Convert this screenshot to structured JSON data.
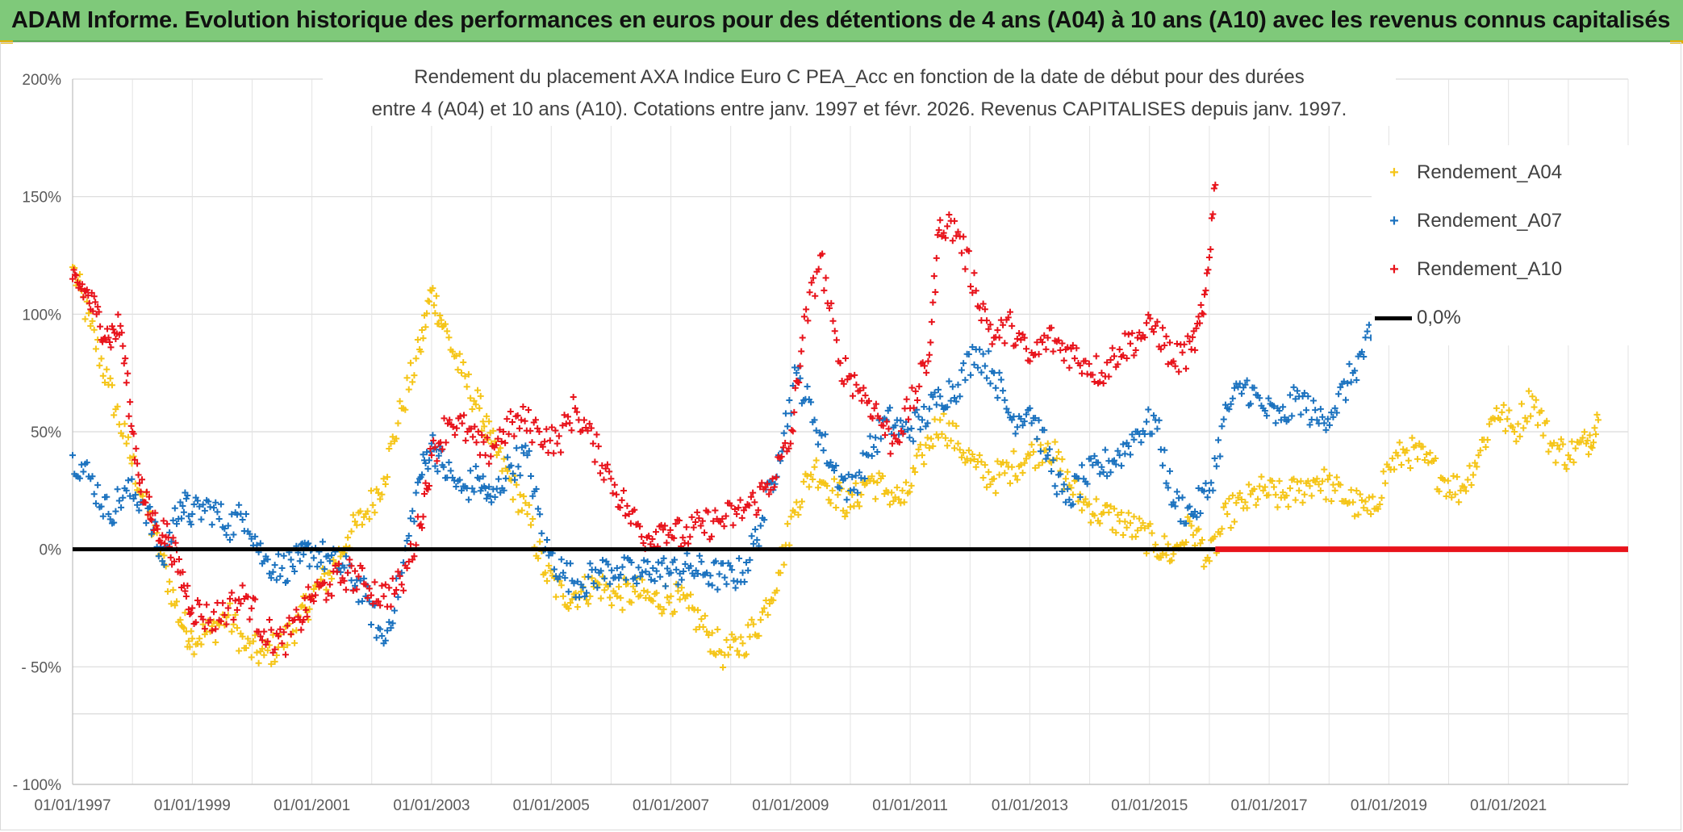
{
  "banner": {
    "title": "ADAM Informe. Evolution historique des performances en euros pour des détentions de 4 ans (A04) à 10 ans (A10) avec les revenus connus capitalisés"
  },
  "chart_data": {
    "type": "scatter",
    "title_line1": "Rendement du placement AXA Indice Euro C PEA_Acc en fonction de la date de début pour des durées",
    "title_line2": "entre 4 (A04) et 10 ans (A10). Cotations entre janv. 1997 et févr. 2026. Revenus CAPITALISES depuis janv. 1997.",
    "xlim": [
      1997.0,
      2023.0
    ],
    "ylim": [
      -100,
      200
    ],
    "y_ticks": [
      {
        "value": 200,
        "label": "200%"
      },
      {
        "value": 150,
        "label": "150%"
      },
      {
        "value": 100,
        "label": "100%"
      },
      {
        "value": 50,
        "label": "50%"
      },
      {
        "value": 0,
        "label": "0%"
      },
      {
        "value": -50,
        "label": "- 50%"
      },
      {
        "value": -100,
        "label": "- 100%"
      }
    ],
    "x_ticks": [
      {
        "value": 1997,
        "label": "01/01/1997"
      },
      {
        "value": 1999,
        "label": "01/01/1999"
      },
      {
        "value": 2001,
        "label": "01/01/2001"
      },
      {
        "value": 2003,
        "label": "01/01/2003"
      },
      {
        "value": 2005,
        "label": "01/01/2005"
      },
      {
        "value": 2007,
        "label": "01/01/2007"
      },
      {
        "value": 2009,
        "label": "01/01/2009"
      },
      {
        "value": 2011,
        "label": "01/01/2011"
      },
      {
        "value": 2013,
        "label": "01/01/2013"
      },
      {
        "value": 2015,
        "label": "01/01/2015"
      },
      {
        "value": 2017,
        "label": "01/01/2017"
      },
      {
        "value": 2019,
        "label": "01/01/2019"
      },
      {
        "value": 2021,
        "label": "01/01/2021"
      }
    ],
    "series": [
      {
        "name": "Rendement_A04",
        "color": "#f5c518",
        "x": [
          1997.0,
          1997.3,
          1997.6,
          1997.9,
          1998.2,
          1998.5,
          1998.8,
          1999.0,
          1999.3,
          1999.6,
          1999.9,
          2000.2,
          2000.5,
          2000.8,
          2001.0,
          2001.3,
          2001.6,
          2001.9,
          2002.2,
          2002.5,
          2002.8,
          2003.0,
          2003.2,
          2003.5,
          2003.8,
          2004.0,
          2004.3,
          2004.6,
          2004.9,
          2005.2,
          2005.5,
          2005.8,
          2006.1,
          2006.4,
          2006.7,
          2007.0,
          2007.3,
          2007.6,
          2007.9,
          2008.2,
          2008.5,
          2008.8,
          2009.1,
          2009.4,
          2009.7,
          2010.0,
          2010.3,
          2010.6,
          2010.9,
          2011.2,
          2011.5,
          2011.8,
          2012.1,
          2012.4,
          2012.7,
          2013.0,
          2013.3,
          2013.6,
          2013.9,
          2014.2,
          2014.5,
          2014.8,
          2015.1,
          2015.4,
          2015.7,
          2016.0,
          2016.3,
          2016.6,
          2016.9,
          2017.2,
          2017.5,
          2017.8,
          2018.1,
          2018.4,
          2018.7,
          2019.0,
          2019.3,
          2019.6,
          2019.9,
          2020.2,
          2020.5,
          2020.8,
          2021.1,
          2021.4,
          2021.7,
          2022.0,
          2022.3,
          2022.5
        ],
        "y": [
          120,
          95,
          70,
          45,
          20,
          -5,
          -30,
          -38,
          -35,
          -28,
          -42,
          -45,
          -40,
          -30,
          -20,
          -10,
          5,
          15,
          30,
          60,
          85,
          110,
          95,
          75,
          60,
          45,
          30,
          15,
          -10,
          -20,
          -18,
          -15,
          -20,
          -18,
          -22,
          -20,
          -25,
          -35,
          -45,
          -40,
          -30,
          -10,
          20,
          35,
          25,
          18,
          30,
          25,
          20,
          40,
          55,
          45,
          35,
          30,
          35,
          40,
          45,
          30,
          20,
          15,
          12,
          8,
          2,
          -2,
          10,
          -5,
          15,
          20,
          25,
          22,
          25,
          30,
          25,
          20,
          15,
          35,
          42,
          38,
          30,
          25,
          40,
          60,
          50,
          65,
          45,
          40,
          45,
          55
        ]
      },
      {
        "name": "Rendement_A07",
        "color": "#1b72bf",
        "x": [
          1997.0,
          1997.3,
          1997.6,
          1997.9,
          1998.2,
          1998.5,
          1998.8,
          1999.0,
          1999.3,
          1999.6,
          1999.9,
          2000.2,
          2000.5,
          2000.8,
          2001.0,
          2001.3,
          2001.6,
          2001.9,
          2002.2,
          2002.5,
          2002.8,
          2003.0,
          2003.2,
          2003.5,
          2003.8,
          2004.0,
          2004.3,
          2004.6,
          2004.9,
          2005.2,
          2005.5,
          2005.8,
          2006.1,
          2006.4,
          2006.7,
          2007.0,
          2007.3,
          2007.6,
          2007.9,
          2008.2,
          2008.5,
          2008.8,
          2009.1,
          2009.4,
          2009.7,
          2010.0,
          2010.3,
          2010.6,
          2010.9,
          2011.2,
          2011.5,
          2011.8,
          2012.1,
          2012.4,
          2012.7,
          2013.0,
          2013.3,
          2013.6,
          2013.9,
          2014.2,
          2014.5,
          2014.8,
          2015.1,
          2015.4,
          2015.7,
          2016.0,
          2016.3,
          2016.6,
          2016.9,
          2017.2,
          2017.5,
          2017.8,
          2018.1,
          2018.4,
          2018.7
        ],
        "y": [
          40,
          30,
          15,
          25,
          20,
          -5,
          20,
          15,
          18,
          10,
          15,
          -5,
          -8,
          -5,
          0,
          -5,
          -10,
          -20,
          -40,
          -10,
          30,
          45,
          35,
          25,
          30,
          20,
          35,
          40,
          0,
          -10,
          -15,
          -10,
          -8,
          -12,
          -8,
          -10,
          -8,
          -10,
          -12,
          -10,
          10,
          40,
          75,
          55,
          35,
          25,
          40,
          55,
          50,
          55,
          65,
          70,
          85,
          75,
          55,
          60,
          40,
          20,
          30,
          35,
          40,
          50,
          55,
          20,
          15,
          25,
          60,
          70,
          60,
          55,
          65,
          55,
          60,
          75,
          90
        ]
      },
      {
        "name": "Rendement_A10",
        "color": "#e8131b",
        "x": [
          1997.0,
          1997.2,
          1997.4,
          1997.6,
          1997.8,
          1998.0,
          1998.2,
          1998.4,
          1998.6,
          1998.8,
          1999.0,
          1999.3,
          1999.6,
          1999.9,
          2000.2,
          2000.5,
          2000.8,
          2001.0,
          2001.3,
          2001.6,
          2001.9,
          2002.2,
          2002.5,
          2002.8,
          2003.0,
          2003.3,
          2003.6,
          2003.9,
          2004.2,
          2004.5,
          2004.8,
          2005.1,
          2005.4,
          2005.7,
          2006.0,
          2006.3,
          2006.6,
          2006.9,
          2007.2,
          2007.5,
          2007.8,
          2008.1,
          2008.4,
          2008.7,
          2009.0,
          2009.2,
          2009.5,
          2009.8,
          2010.1,
          2010.4,
          2010.7,
          2011.0,
          2011.3,
          2011.5,
          2011.8,
          2012.1,
          2012.4,
          2012.7,
          2013.0,
          2013.3,
          2013.6,
          2013.9,
          2014.2,
          2014.5,
          2014.8,
          2015.1,
          2015.4,
          2015.7,
          2015.9,
          2016.1
        ],
        "y": [
          115,
          110,
          100,
          90,
          95,
          50,
          20,
          10,
          5,
          -10,
          -25,
          -30,
          -25,
          -20,
          -35,
          -40,
          -30,
          -20,
          -15,
          -10,
          -15,
          -20,
          -15,
          10,
          40,
          55,
          50,
          40,
          50,
          55,
          50,
          45,
          60,
          45,
          30,
          15,
          5,
          10,
          5,
          10,
          12,
          15,
          20,
          30,
          45,
          90,
          125,
          80,
          70,
          60,
          45,
          60,
          80,
          140,
          135,
          110,
          90,
          95,
          80,
          90,
          85,
          80,
          75,
          85,
          90,
          95,
          80,
          85,
          100,
          155
        ]
      },
      {
        "name": "0,0%",
        "color": "#000000",
        "x": [
          1997.0,
          2016.1
        ],
        "y": [
          0,
          0
        ]
      }
    ],
    "zero_red_segment": {
      "x_start": 2016.1,
      "x_end": 2023.0,
      "y": 0
    },
    "legend_position": "right"
  }
}
